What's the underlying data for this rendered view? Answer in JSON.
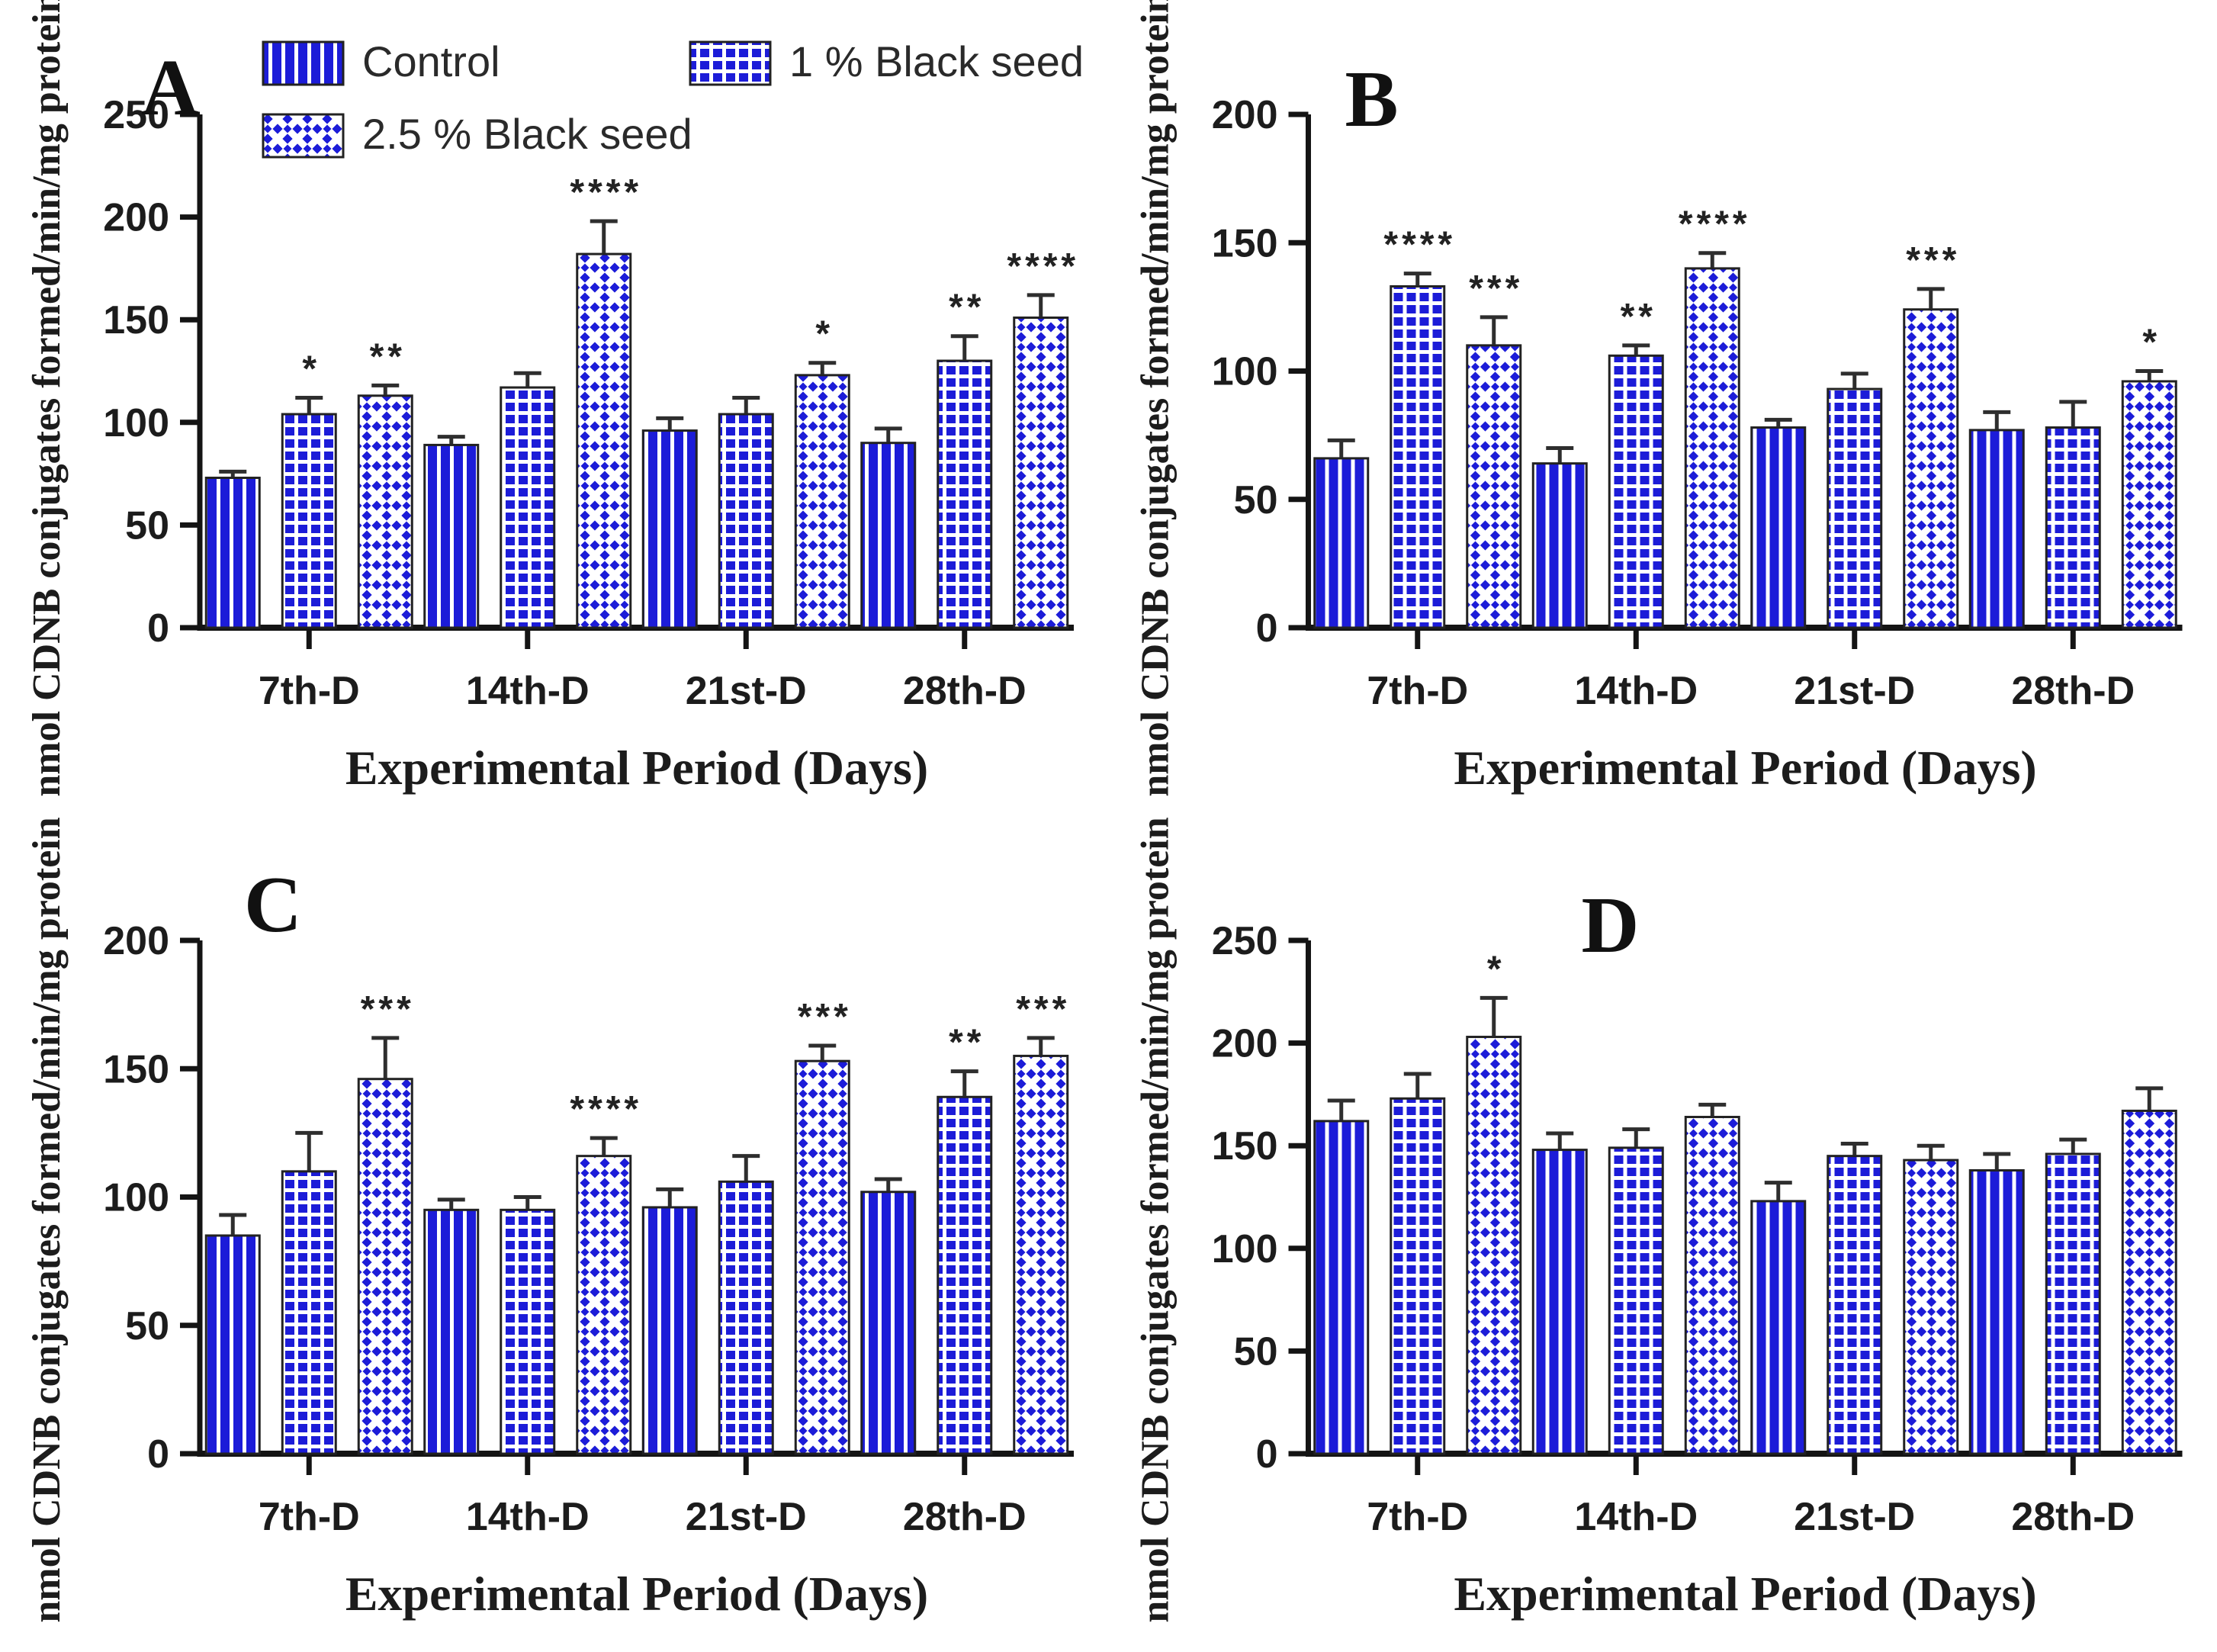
{
  "figure": {
    "legend": [
      "Control",
      "1 % Black seed",
      "2.5 % Black seed"
    ],
    "xlabel": "Experimental Period (Days)",
    "ylabel": "nmol CDNB conjugates formed/min/mg protein",
    "categories": [
      "7th-D",
      "14th-D",
      "21st-D",
      "28th-D"
    ],
    "colors": {
      "bar_blue": "#1c1cd8",
      "axis": "#141414",
      "text": "#1c1c1c",
      "error_bar": "#2e2e2e",
      "star": "#222222",
      "legend_text": "#2a2a2a",
      "pattern_white": "#ffffff"
    }
  },
  "chart_data": [
    {
      "type": "bar",
      "panel": "A",
      "has_legend": true,
      "ylim": [
        0,
        250
      ],
      "ytick_step": 50,
      "categories": [
        "7th-D",
        "14th-D",
        "21st-D",
        "28th-D"
      ],
      "xlabel": "Experimental Period (Days)",
      "ylabel": "nmol CDNB conjugates formed/min/mg protein",
      "series": [
        {
          "name": "Control",
          "values": [
            73,
            89,
            96,
            90
          ],
          "errors": [
            3,
            4,
            6,
            7
          ],
          "sig": [
            "",
            "",
            "",
            ""
          ]
        },
        {
          "name": "1 % Black seed",
          "values": [
            104,
            117,
            104,
            130
          ],
          "errors": [
            8,
            7,
            8,
            12
          ],
          "sig": [
            "*",
            "",
            "",
            "**"
          ]
        },
        {
          "name": "2.5 % Black seed",
          "values": [
            113,
            182,
            123,
            151
          ],
          "errors": [
            5,
            16,
            6,
            11
          ],
          "sig": [
            "**",
            "****",
            "*",
            "****"
          ]
        }
      ]
    },
    {
      "type": "bar",
      "panel": "B",
      "has_legend": false,
      "ylim": [
        0,
        200
      ],
      "ytick_step": 50,
      "categories": [
        "7th-D",
        "14th-D",
        "21st-D",
        "28th-D"
      ],
      "xlabel": "Experimental Period (Days)",
      "ylabel": "nmol CDNB conjugates formed/min/mg protein",
      "series": [
        {
          "name": "Control",
          "values": [
            66,
            64,
            78,
            77
          ],
          "errors": [
            7,
            6,
            3,
            7
          ],
          "sig": [
            "",
            "",
            "",
            ""
          ]
        },
        {
          "name": "1 % Black seed",
          "values": [
            133,
            106,
            93,
            78
          ],
          "errors": [
            5,
            4,
            6,
            10
          ],
          "sig": [
            "****",
            "**",
            "",
            ""
          ]
        },
        {
          "name": "2.5 % Black seed",
          "values": [
            110,
            140,
            124,
            96
          ],
          "errors": [
            11,
            6,
            8,
            4
          ],
          "sig": [
            "***",
            "****",
            "***",
            "*"
          ]
        }
      ]
    },
    {
      "type": "bar",
      "panel": "C",
      "has_legend": false,
      "ylim": [
        0,
        200
      ],
      "ytick_step": 50,
      "categories": [
        "7th-D",
        "14th-D",
        "21st-D",
        "28th-D"
      ],
      "xlabel": "Experimental Period (Days)",
      "ylabel": "nmol CDNB conjugates formed/min/mg protein",
      "series": [
        {
          "name": "Control",
          "values": [
            85,
            95,
            96,
            102
          ],
          "errors": [
            8,
            4,
            7,
            5
          ],
          "sig": [
            "",
            "",
            "",
            ""
          ]
        },
        {
          "name": "1 % Black seed",
          "values": [
            110,
            95,
            106,
            139
          ],
          "errors": [
            15,
            5,
            10,
            10
          ],
          "sig": [
            "",
            "",
            "",
            "**"
          ]
        },
        {
          "name": "2.5 % Black seed",
          "values": [
            146,
            116,
            153,
            155
          ],
          "errors": [
            16,
            7,
            6,
            7
          ],
          "sig": [
            "***",
            "****",
            "***",
            "***"
          ]
        }
      ]
    },
    {
      "type": "bar",
      "panel": "D",
      "has_legend": false,
      "ylim": [
        0,
        250
      ],
      "ytick_step": 50,
      "categories": [
        "7th-D",
        "14th-D",
        "21st-D",
        "28th-D"
      ],
      "xlabel": "Experimental Period (Days)",
      "ylabel": "nmol CDNB conjugates formed/min/mg protein",
      "series": [
        {
          "name": "Control",
          "values": [
            162,
            148,
            123,
            138
          ],
          "errors": [
            10,
            8,
            9,
            8
          ],
          "sig": [
            "",
            "",
            "",
            ""
          ]
        },
        {
          "name": "1 % Black seed",
          "values": [
            173,
            149,
            145,
            146
          ],
          "errors": [
            12,
            9,
            6,
            7
          ],
          "sig": [
            "",
            "",
            "",
            ""
          ]
        },
        {
          "name": "2.5 % Black seed",
          "values": [
            203,
            164,
            143,
            167
          ],
          "errors": [
            19,
            6,
            7,
            11
          ],
          "sig": [
            "*",
            "",
            "",
            ""
          ]
        }
      ]
    }
  ]
}
